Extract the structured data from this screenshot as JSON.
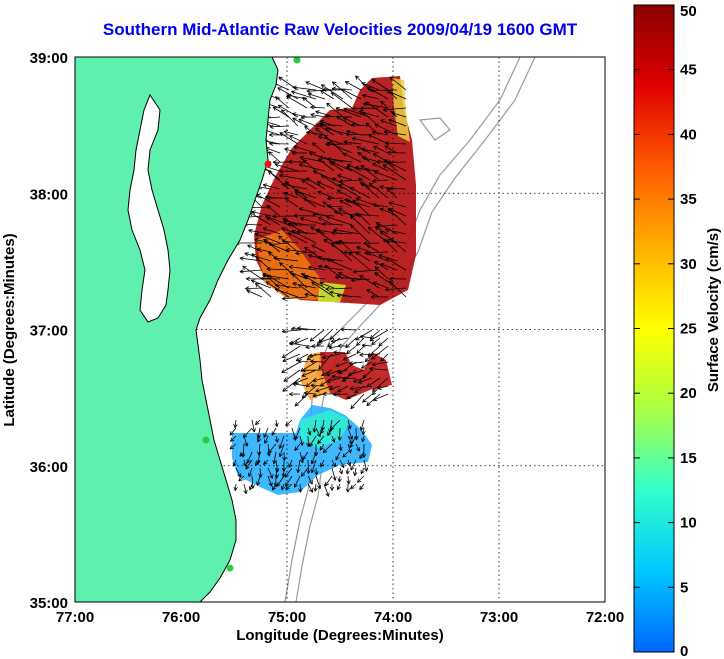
{
  "title": "Southern Mid-Atlantic Raw Velocities 2009/04/19 1600 GMT",
  "map": {
    "x_axis_label": "Longitude (Degrees:Minutes)",
    "y_axis_label": "Latitude (Degrees:Minutes)",
    "lon_range": [
      -77,
      -72
    ],
    "lat_range": [
      35,
      39
    ],
    "x_ticks": [
      "77:00",
      "76:00",
      "75:00",
      "74:00",
      "73:00",
      "72:00"
    ],
    "y_ticks": [
      "39:00",
      "38:00",
      "37:00",
      "36:00",
      "35:00"
    ],
    "grid": "dotted",
    "land_color": "#5ff0b0",
    "coastline_color": "#000000",
    "bathymetry_color": "#9a9a9a",
    "arrow_color": "#000000",
    "station_color": "#22cc44"
  },
  "colorbar": {
    "label": "Surface Velocity (cm/s)",
    "min": 0,
    "max": 50,
    "ticks": [
      "0",
      "5",
      "10",
      "15",
      "20",
      "25",
      "30",
      "35",
      "40",
      "45",
      "50"
    ],
    "colors": [
      "#0066ff",
      "#00c8ff",
      "#33ffcc",
      "#aaff44",
      "#ffff00",
      "#ffb000",
      "#ff5a00",
      "#e00000",
      "#8b0000"
    ]
  }
}
